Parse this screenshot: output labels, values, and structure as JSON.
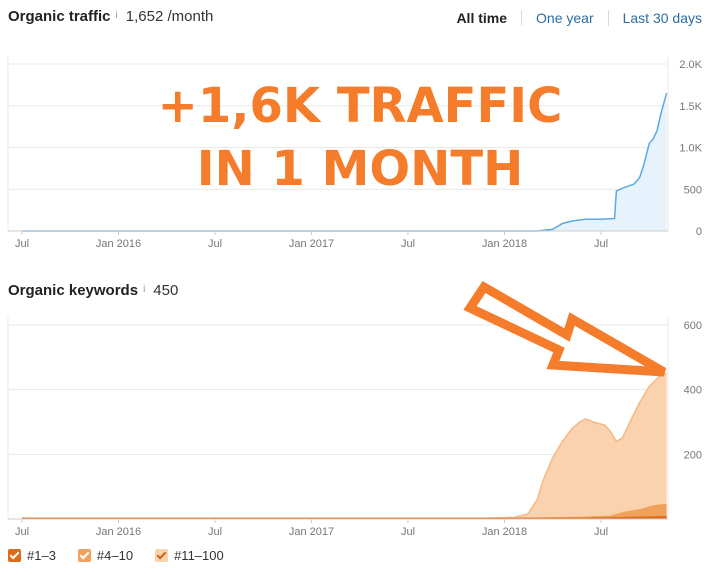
{
  "header_traffic": {
    "title": "Organic traffic",
    "info": "i",
    "value": "1,652 /month"
  },
  "header_keywords": {
    "title": "Organic keywords",
    "info": "i",
    "value": "450"
  },
  "range_options": [
    "All time",
    "One year",
    "Last 30 days"
  ],
  "selected_range": "All time",
  "overlay": {
    "line1": "+1,6K TRAFFIC",
    "line2": "IN 1 MONTH",
    "color": "#f47c2b"
  },
  "legend": [
    "#1–3",
    "#4–10",
    "#11–100"
  ],
  "colors": {
    "traffic": "#5ea9dd",
    "traffic_fill": "#e6f2fc",
    "kw_top3": "#e06a17",
    "kw_4_10": "#f0a25d",
    "kw_11_100": "#fad2ad",
    "accent": "#f47c2b"
  },
  "chart_data": [
    {
      "type": "area",
      "title": "Organic traffic",
      "x_tick_labels": [
        "Jul",
        "Jan 2016",
        "Jul",
        "Jan 2017",
        "Jul",
        "Jan 2018",
        "Jul"
      ],
      "y_tick_labels": [
        "2.0K",
        "1.5K",
        "1.0K",
        "500",
        "0"
      ],
      "ylim": [
        0,
        2000
      ],
      "grid": true,
      "series": [
        {
          "name": "Organic traffic",
          "points": [
            [
              2015.5,
              0
            ],
            [
              2016.0,
              0
            ],
            [
              2016.5,
              0
            ],
            [
              2017.0,
              0
            ],
            [
              2017.5,
              0
            ],
            [
              2017.9,
              0
            ],
            [
              2018.17,
              0
            ],
            [
              2018.25,
              20
            ],
            [
              2018.3,
              90
            ],
            [
              2018.35,
              120
            ],
            [
              2018.42,
              140
            ],
            [
              2018.5,
              140
            ],
            [
              2018.57,
              150
            ],
            [
              2018.58,
              480
            ],
            [
              2018.62,
              520
            ],
            [
              2018.67,
              560
            ],
            [
              2018.7,
              640
            ],
            [
              2018.72,
              780
            ],
            [
              2018.75,
              1050
            ],
            [
              2018.77,
              1100
            ],
            [
              2018.79,
              1200
            ],
            [
              2018.81,
              1400
            ],
            [
              2018.84,
              1652
            ]
          ]
        }
      ]
    },
    {
      "type": "area",
      "title": "Organic keywords",
      "x_tick_labels": [
        "Jul",
        "Jan 2016",
        "Jul",
        "Jan 2017",
        "Jul",
        "Jan 2018",
        "Jul"
      ],
      "y_tick_labels": [
        "600",
        "400",
        "200"
      ],
      "ylim": [
        0,
        600
      ],
      "grid": true,
      "series": [
        {
          "name": "#11–100",
          "points": [
            [
              2015.5,
              3
            ],
            [
              2016.0,
              3
            ],
            [
              2016.5,
              3
            ],
            [
              2017.0,
              3
            ],
            [
              2017.5,
              3
            ],
            [
              2017.9,
              3
            ],
            [
              2018.05,
              5
            ],
            [
              2018.12,
              15
            ],
            [
              2018.17,
              60
            ],
            [
              2018.2,
              120
            ],
            [
              2018.25,
              190
            ],
            [
              2018.3,
              240
            ],
            [
              2018.35,
              280
            ],
            [
              2018.39,
              300
            ],
            [
              2018.42,
              310
            ],
            [
              2018.46,
              300
            ],
            [
              2018.49,
              295
            ],
            [
              2018.52,
              290
            ],
            [
              2018.55,
              270
            ],
            [
              2018.58,
              240
            ],
            [
              2018.61,
              250
            ],
            [
              2018.65,
              300
            ],
            [
              2018.7,
              360
            ],
            [
              2018.75,
              410
            ],
            [
              2018.8,
              440
            ],
            [
              2018.84,
              450
            ]
          ]
        },
        {
          "name": "#4–10",
          "points": [
            [
              2015.5,
              2
            ],
            [
              2017.9,
              2
            ],
            [
              2018.2,
              3
            ],
            [
              2018.4,
              5
            ],
            [
              2018.55,
              8
            ],
            [
              2018.62,
              20
            ],
            [
              2018.7,
              28
            ],
            [
              2018.77,
              40
            ],
            [
              2018.84,
              45
            ]
          ]
        },
        {
          "name": "#1–3",
          "points": [
            [
              2015.5,
              1
            ],
            [
              2017.9,
              1
            ],
            [
              2018.4,
              2
            ],
            [
              2018.6,
              4
            ],
            [
              2018.84,
              7
            ]
          ]
        }
      ]
    }
  ]
}
